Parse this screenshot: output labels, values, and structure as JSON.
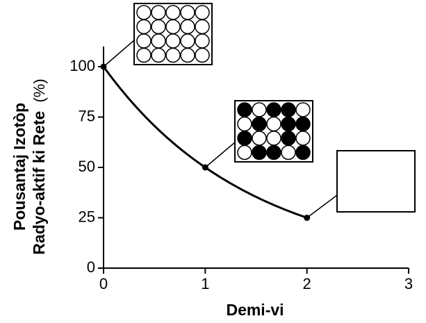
{
  "chart_data": {
    "type": "line",
    "xlabel": "Demi-vi",
    "ylabel_lines": [
      "Pousantaj Izotòp",
      "Radyo-aktif ki Rete"
    ],
    "ylabel_unit": "(%)",
    "x": [
      0,
      1,
      2
    ],
    "series": [
      {
        "color": "#000000",
        "values": [
          100,
          50,
          25
        ]
      }
    ],
    "xlim": [
      0,
      3
    ],
    "xticks": [
      0,
      1,
      2,
      3
    ],
    "ylim": [
      0,
      110
    ],
    "yticks": [
      0,
      25,
      50,
      75,
      100
    ]
  }
}
